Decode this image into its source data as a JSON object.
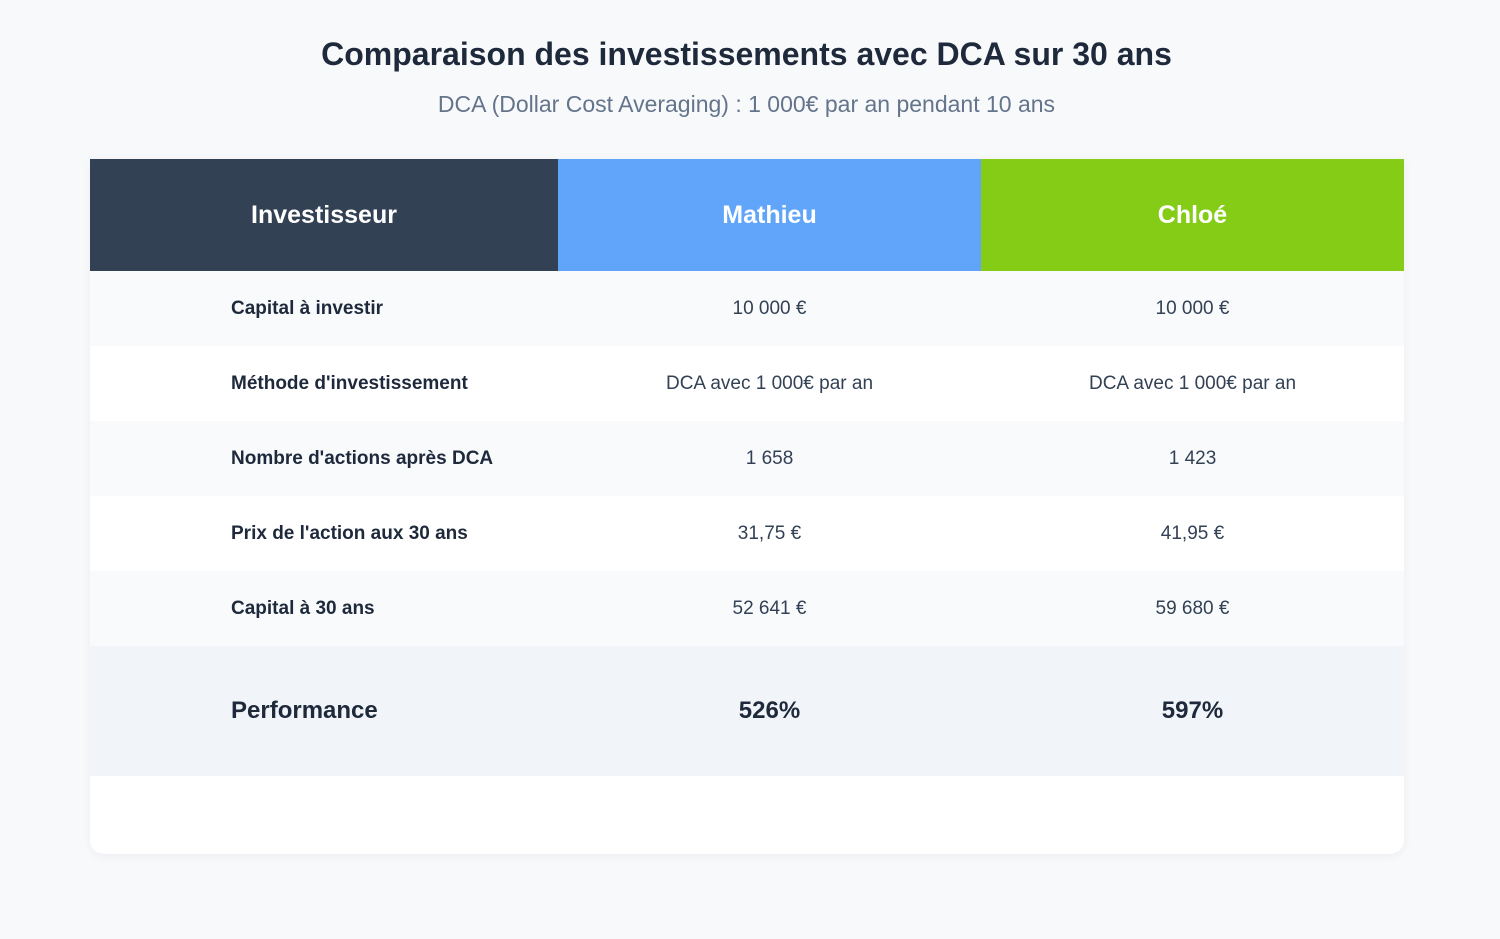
{
  "title": "Comparaison des investissements avec DCA sur 30 ans",
  "subtitle": "DCA (Dollar Cost Averaging) : 1 000€ par an pendant 10 ans",
  "table": {
    "headers": [
      "Investisseur",
      "Mathieu",
      "Chloé"
    ],
    "header_colors": [
      "#334155",
      "#60a5fa",
      "#84cc16"
    ],
    "rows": [
      {
        "label": "Capital à investir",
        "mathieu": "10 000 €",
        "chloe": "10 000 €"
      },
      {
        "label": "Méthode d'investissement",
        "mathieu": "DCA avec 1 000€ par an",
        "chloe": "DCA avec 1 000€ par an"
      },
      {
        "label": "Nombre d'actions après DCA",
        "mathieu": "1 658",
        "chloe": "1 423"
      },
      {
        "label": "Prix de l'action aux 30 ans",
        "mathieu": "31,75 €",
        "chloe": "41,95 €"
      },
      {
        "label": "Capital à 30 ans",
        "mathieu": "52 641 €",
        "chloe": "59 680 €"
      }
    ],
    "performance": {
      "label": "Performance",
      "mathieu": "526%",
      "chloe": "597%"
    }
  }
}
